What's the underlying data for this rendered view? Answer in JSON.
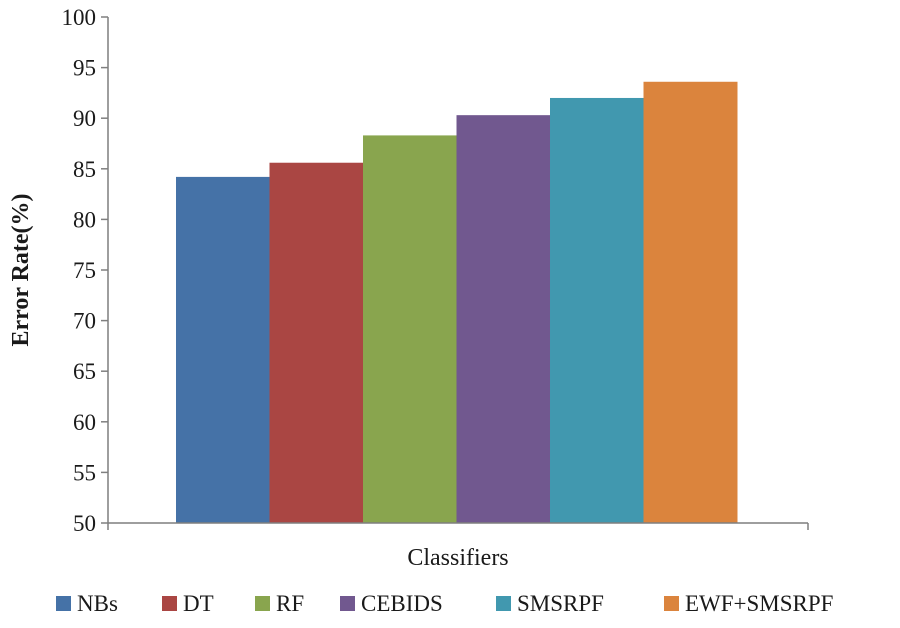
{
  "chart_data": {
    "type": "bar",
    "title": "",
    "xlabel": "Classifiers",
    "ylabel": "Error Rate(%)",
    "ylim": [
      50,
      100
    ],
    "yticks": [
      50,
      55,
      60,
      65,
      70,
      75,
      80,
      85,
      90,
      95,
      100
    ],
    "grid": false,
    "legend_position": "bottom",
    "series": [
      {
        "name": "NBs",
        "values": [
          84.2
        ],
        "color": "#4572A7"
      },
      {
        "name": "DT",
        "values": [
          85.6
        ],
        "color": "#AA4643"
      },
      {
        "name": "RF",
        "values": [
          88.3
        ],
        "color": "#89A54E"
      },
      {
        "name": "CEBIDS",
        "values": [
          90.3
        ],
        "color": "#71588F"
      },
      {
        "name": "SMSRPF",
        "values": [
          92.0
        ],
        "color": "#4198AF"
      },
      {
        "name": "EWF+SMSRPF",
        "values": [
          93.6
        ],
        "color": "#DB843D"
      }
    ]
  }
}
